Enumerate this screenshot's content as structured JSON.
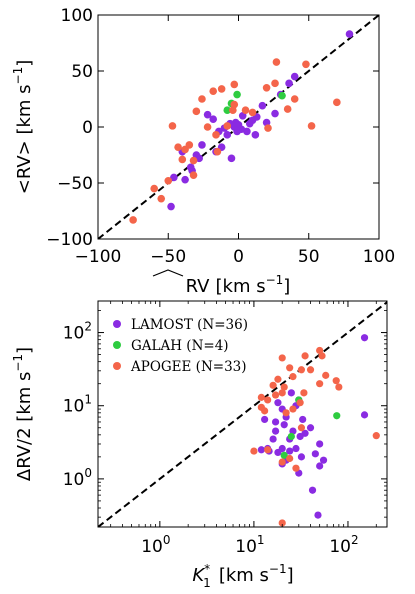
{
  "chart_data": [
    {
      "type": "scatter",
      "title": "",
      "xlabel": "RV [km s⁻¹]",
      "xlabel_hat": "RV",
      "xlabel_unit": "[km s",
      "xlabel_exp": "−1",
      "xlabel_close": "]",
      "ylabel": "<RV> [km s⁻¹]",
      "ylabel_main": "<RV> [km s",
      "ylabel_exp": "−1",
      "ylabel_close": "]",
      "xlim": [
        -100,
        100
      ],
      "ylim": [
        -100,
        100
      ],
      "xticks": [
        -100,
        -50,
        0,
        50,
        100
      ],
      "xtick_labels": [
        "−100",
        "−50",
        "0",
        "50",
        "100"
      ],
      "yticks": [
        -100,
        -50,
        0,
        50,
        100
      ],
      "ytick_labels": [
        "−100",
        "−50",
        "0",
        "50",
        "100"
      ],
      "reference_line": "y = x",
      "series": [
        {
          "color": "#8a2be2",
          "points": [
            [
              79,
              83
            ],
            [
              40,
              45
            ],
            [
              36,
              39
            ],
            [
              17,
              19
            ],
            [
              13,
              9
            ],
            [
              10,
              6
            ],
            [
              6,
              -4
            ],
            [
              0,
              2
            ],
            [
              -3,
              0
            ],
            [
              -2,
              4
            ],
            [
              2,
              -2
            ],
            [
              -6,
              3
            ],
            [
              -10,
              -1
            ],
            [
              -14,
              -4
            ],
            [
              -18,
              7
            ],
            [
              -22,
              11
            ],
            [
              -26,
              -16
            ],
            [
              -30,
              -25
            ],
            [
              -33,
              -39
            ],
            [
              -38,
              -47
            ],
            [
              -46,
              -45
            ],
            [
              -48,
              -71
            ],
            [
              -8,
              -7
            ],
            [
              -12,
              -18
            ],
            [
              -5,
              -28
            ],
            [
              20,
              4
            ],
            [
              30,
              29
            ],
            [
              26,
              12
            ],
            [
              -28,
              -28
            ],
            [
              3,
              10
            ],
            [
              -16,
              -22
            ],
            [
              -1,
              -4
            ],
            [
              8,
              3
            ],
            [
              12,
              -7
            ],
            [
              -40,
              -22
            ],
            [
              -34,
              -36
            ]
          ]
        },
        {
          "color": "#2ecc40",
          "points": [
            [
              -1,
              29
            ],
            [
              -8,
              15
            ],
            [
              31,
              28
            ],
            [
              -5,
              21
            ]
          ]
        },
        {
          "color": "#f4654a",
          "points": [
            [
              27,
              58
            ],
            [
              48,
              56
            ],
            [
              26,
              39
            ],
            [
              20,
              35
            ],
            [
              -3,
              38
            ],
            [
              -12,
              34
            ],
            [
              -18,
              32
            ],
            [
              -26,
              25
            ],
            [
              -47,
              1
            ],
            [
              -43,
              -18
            ],
            [
              -38,
              -20
            ],
            [
              -40,
              -29
            ],
            [
              -32,
              -30
            ],
            [
              -60,
              -55
            ],
            [
              -50,
              -48
            ],
            [
              -55,
              -64
            ],
            [
              -75,
              -83
            ],
            [
              -35,
              -16
            ],
            [
              -32,
              -43
            ],
            [
              -15,
              -22
            ],
            [
              -8,
              1
            ],
            [
              -3,
              20
            ],
            [
              10,
              13
            ],
            [
              21,
              -1
            ],
            [
              40,
              25
            ],
            [
              52,
              1
            ],
            [
              70,
              22
            ],
            [
              -22,
              0
            ],
            [
              -4,
              15
            ],
            [
              -30,
              14
            ],
            [
              -16,
              -7
            ],
            [
              35,
              16
            ],
            [
              5,
              15
            ]
          ]
        }
      ]
    },
    {
      "type": "scatter",
      "title": "",
      "xlabel": "K₁* [km s⁻¹]",
      "xlabel_main": "K",
      "xlabel_sub": "1",
      "xlabel_sup": "*",
      "xlabel_unit": "[km s",
      "xlabel_exp": "−1",
      "xlabel_close": "]",
      "ylabel": "ΔRV/2 [km s⁻¹]",
      "ylabel_main": "ΔRV/2 [km s",
      "ylabel_exp": "−1",
      "ylabel_close": "]",
      "xscale": "log",
      "yscale": "log",
      "xlim": [
        0.22,
        260
      ],
      "ylim": [
        0.22,
        270
      ],
      "xticks": [
        1,
        10,
        100
      ],
      "xtick_labels": [
        [
          "10",
          "0"
        ],
        [
          "10",
          "1"
        ],
        [
          "10",
          "2"
        ]
      ],
      "yticks": [
        1,
        10,
        100
      ],
      "ytick_labels": [
        [
          "10",
          "0"
        ],
        [
          "10",
          "1"
        ],
        [
          "10",
          "2"
        ]
      ],
      "reference_line": "y = x",
      "legend": {
        "placement": "top-left",
        "entries": [
          {
            "label": "LAMOST (N=36)",
            "color": "#8a2be2"
          },
          {
            "label": "GALAH (N=4)",
            "color": "#2ecc40"
          },
          {
            "label": "APOGEE (N=33)",
            "color": "#f4654a"
          }
        ]
      },
      "series": [
        {
          "color": "#8a2be2",
          "points": [
            [
              150,
              85
            ],
            [
              150,
              7.5
            ],
            [
              50,
              1.5
            ],
            [
              48,
              0.32
            ],
            [
              42,
              0.7
            ],
            [
              30,
              1.2
            ],
            [
              22,
              1.8
            ],
            [
              20,
              2.6
            ],
            [
              16,
              3.5
            ],
            [
              17,
              6
            ],
            [
              14,
              2.6
            ],
            [
              18,
              2.3
            ],
            [
              14.5,
              2.4
            ],
            [
              20,
              1.6
            ],
            [
              24,
              2.4
            ],
            [
              28,
              2.6
            ],
            [
              24,
              3.5
            ],
            [
              26,
              4.5
            ],
            [
              31,
              3.8
            ],
            [
              35,
              4.2
            ],
            [
              40,
              5
            ],
            [
              45,
              2.2
            ],
            [
              50,
              3
            ],
            [
              28,
              10
            ],
            [
              30,
              12
            ],
            [
              25,
              15
            ],
            [
              17,
              4.5
            ],
            [
              13,
              6.5
            ],
            [
              12,
              2.5
            ],
            [
              21,
              5.5
            ],
            [
              33,
              6.5
            ],
            [
              22,
              7
            ],
            [
              20,
              9
            ],
            [
              32,
              2
            ],
            [
              55,
              1.8
            ],
            [
              18,
              11
            ]
          ]
        },
        {
          "color": "#2ecc40",
          "points": [
            [
              76,
              7.3
            ],
            [
              25,
              3.8
            ],
            [
              21,
              2.1
            ],
            [
              30,
              12
            ]
          ]
        },
        {
          "color": "#f4654a",
          "points": [
            [
              50,
              57
            ],
            [
              53,
              48
            ],
            [
              35,
              48
            ],
            [
              20,
              45
            ],
            [
              24,
              33
            ],
            [
              26,
              25
            ],
            [
              18,
              23
            ],
            [
              16,
              19
            ],
            [
              21,
              18
            ],
            [
              20,
              15
            ],
            [
              17,
              14
            ],
            [
              14,
              12
            ],
            [
              12,
              13
            ],
            [
              13,
              8.5
            ],
            [
              12,
              9.5
            ],
            [
              10,
              2.4
            ],
            [
              14,
              2.5
            ],
            [
              20,
              1.7
            ],
            [
              20,
              0.25
            ],
            [
              24,
              1.9
            ],
            [
              28,
              1.4
            ],
            [
              26,
              9
            ],
            [
              22,
              8
            ],
            [
              32,
              5
            ],
            [
              31,
              11
            ],
            [
              34,
              15
            ],
            [
              32,
              31
            ],
            [
              40,
              31
            ],
            [
              50,
              20
            ],
            [
              58,
              26
            ],
            [
              75,
              22
            ],
            [
              80,
              18
            ],
            [
              200,
              3.9
            ]
          ]
        }
      ]
    }
  ]
}
